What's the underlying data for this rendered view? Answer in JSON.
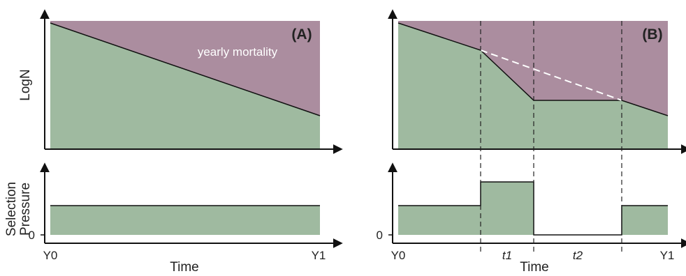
{
  "colors": {
    "mortality": "#ab8d9f",
    "population": "#9fbaa0",
    "axis": "#111111",
    "dashed_white": "#ffffff",
    "dashed_black": "#222222"
  },
  "labels": {
    "y_top": "LogN",
    "y_bottom_line1": "Selection",
    "y_bottom_line2": "Pressure",
    "zero_tick": "0",
    "x_axis": "Time",
    "x_start": "Y0",
    "x_end": "Y1",
    "panel_a": "(A)",
    "panel_b": "(B)",
    "mortality_annotation": "yearly mortality",
    "t1": "t1",
    "t2": "t2"
  }
}
